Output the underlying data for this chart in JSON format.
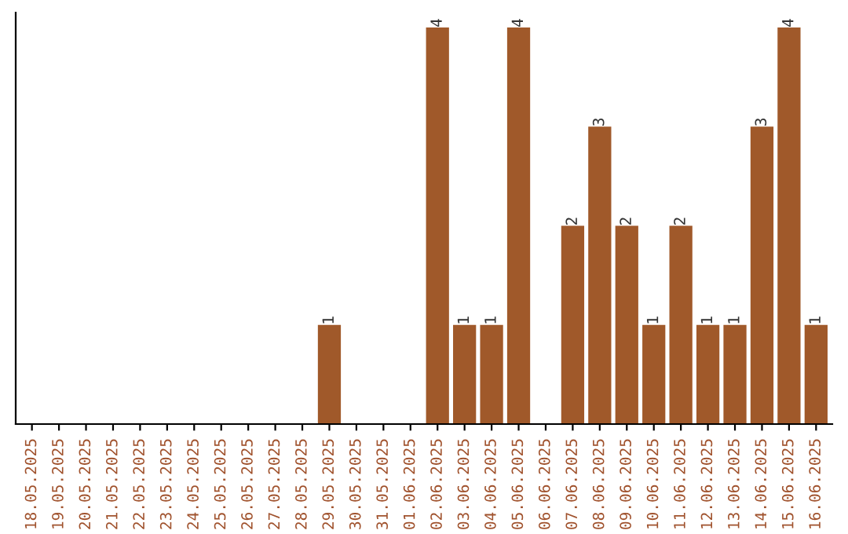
{
  "chart_data": {
    "type": "bar",
    "categories": [
      "18.05.2025",
      "19.05.2025",
      "20.05.2025",
      "21.05.2025",
      "22.05.2025",
      "23.05.2025",
      "24.05.2025",
      "25.05.2025",
      "26.05.2025",
      "27.05.2025",
      "28.05.2025",
      "29.05.2025",
      "30.05.2025",
      "31.05.2025",
      "01.06.2025",
      "02.06.2025",
      "03.06.2025",
      "04.06.2025",
      "05.06.2025",
      "06.06.2025",
      "07.06.2025",
      "08.06.2025",
      "09.06.2025",
      "10.06.2025",
      "11.06.2025",
      "12.06.2025",
      "13.06.2025",
      "14.06.2025",
      "15.06.2025",
      "16.06.2025"
    ],
    "values": [
      0,
      0,
      0,
      0,
      0,
      0,
      0,
      0,
      0,
      0,
      0,
      1,
      0,
      0,
      0,
      4,
      1,
      1,
      4,
      0,
      2,
      3,
      2,
      1,
      2,
      1,
      1,
      3,
      4,
      1
    ],
    "value_labels": [
      null,
      null,
      null,
      null,
      null,
      null,
      null,
      null,
      null,
      null,
      null,
      "1",
      null,
      null,
      null,
      "4",
      "1",
      "1",
      "4",
      null,
      "2",
      "3",
      "2",
      "1",
      "2",
      "1",
      "1",
      "3",
      "4",
      "1"
    ],
    "color": "#a0592a",
    "ylim": [
      0,
      4.15
    ],
    "tick_labels": "x",
    "grid": false,
    "legend": false
  }
}
